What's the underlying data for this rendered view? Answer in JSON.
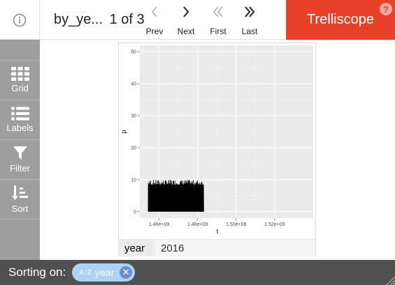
{
  "header": {
    "display_name": "by_ye...",
    "page_count": "1 of 3",
    "nav": [
      {
        "id": "prev",
        "label": "Prev",
        "enabled": false
      },
      {
        "id": "next",
        "label": "Next",
        "enabled": true
      },
      {
        "id": "first",
        "label": "First",
        "enabled": false
      },
      {
        "id": "last",
        "label": "Last",
        "enabled": true
      }
    ],
    "brand": "Trelliscope",
    "help": "?"
  },
  "sidebar": {
    "items": [
      {
        "id": "grid",
        "label": "Grid",
        "icon": "grid-icon"
      },
      {
        "id": "labels",
        "label": "Labels",
        "icon": "list-icon"
      },
      {
        "id": "filter",
        "label": "Filter",
        "icon": "funnel-icon"
      },
      {
        "id": "sort",
        "label": "Sort",
        "icon": "sort-icon"
      }
    ]
  },
  "panel": {
    "cognostic": {
      "name": "year",
      "value": "2016"
    },
    "chart_data": {
      "type": "line",
      "xlabel": "t",
      "ylabel": "p",
      "xlim": [
        1450000000,
        1540000000
      ],
      "ylim": [
        -2,
        52
      ],
      "x_ticks": [
        1460000000,
        1480000000,
        1500000000,
        1520000000
      ],
      "x_tick_labels": [
        "1.46e+09",
        "1.48e+09",
        "1.50e+09",
        "1.52e+09"
      ],
      "y_ticks": [
        0,
        10,
        20,
        30,
        40,
        50
      ],
      "y_tick_labels": [
        "0",
        "10",
        "20",
        "30",
        "40",
        "50"
      ],
      "grid": true,
      "series_extent": {
        "x": [
          1454300000,
          1483200000
        ],
        "y": [
          0,
          10
        ]
      }
    }
  },
  "footer": {
    "label": "Sorting on:",
    "sort_var": "year",
    "sort_icon": "A↓Z",
    "remove": "✕"
  },
  "colors": {
    "brand": "#e8412a",
    "sidebar": "#9e9e9e",
    "footer": "#505050",
    "chip": "#aad3f5"
  }
}
